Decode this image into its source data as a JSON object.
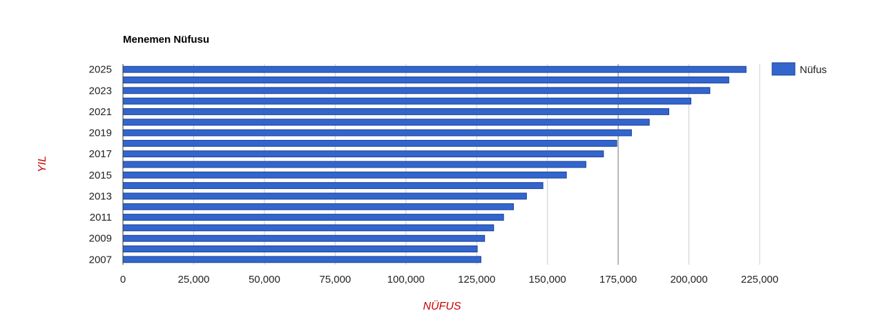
{
  "chart_data": {
    "type": "bar",
    "orientation": "horizontal",
    "title": "Menemen Nüfusu",
    "xlabel": "NÜFUS",
    "ylabel": "YIL",
    "xlim": [
      0,
      250000
    ],
    "x_ticks": [
      0,
      25000,
      50000,
      75000,
      100000,
      125000,
      150000,
      175000,
      200000,
      225000
    ],
    "x_tick_labels": [
      "0",
      "25,000",
      "50,000",
      "75,000",
      "100,000",
      "125,000",
      "150,000",
      "175,000",
      "200,000",
      "225,000"
    ],
    "categories": [
      "2025",
      "2024",
      "2023",
      "2022",
      "2021",
      "2020",
      "2019",
      "2018",
      "2017",
      "2016",
      "2015",
      "2014",
      "2013",
      "2012",
      "2011",
      "2010",
      "2009",
      "2008",
      "2007"
    ],
    "y_tick_labels": [
      "2025",
      "2023",
      "2021",
      "2019",
      "2017",
      "2015",
      "2013",
      "2011",
      "2009",
      "2007"
    ],
    "series": [
      {
        "name": "Nüfus",
        "color": "#3366cc",
        "values": [
          220200,
          214100,
          207400,
          200700,
          192900,
          186000,
          179700,
          174500,
          169800,
          163600,
          156700,
          148400,
          142600,
          138000,
          134500,
          131000,
          127800,
          125200,
          126500
        ]
      }
    ],
    "grid": true,
    "legend": "right",
    "colors": {
      "bar_fill": "#3366cc",
      "bar_stroke": "#1a3d99",
      "axis_title": "#cc0000",
      "gridline": "#cccccc"
    }
  }
}
